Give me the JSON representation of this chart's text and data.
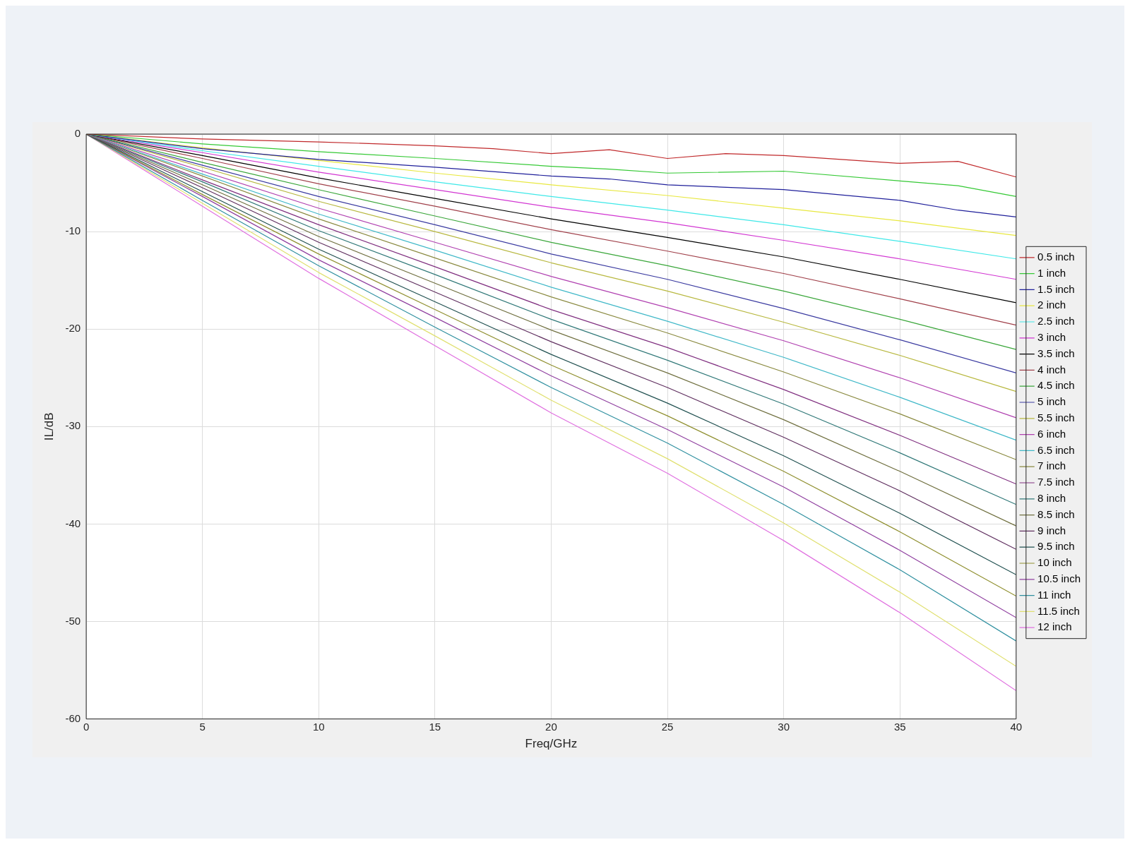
{
  "chart_data": {
    "type": "line",
    "xlabel": "Freq/GHz",
    "ylabel": "IL/dB",
    "xlim": [
      0,
      40
    ],
    "ylim": [
      -60,
      0
    ],
    "xticks": [
      0,
      5,
      10,
      15,
      20,
      25,
      30,
      35,
      40
    ],
    "yticks": [
      -60,
      -50,
      -40,
      -30,
      -20,
      -10,
      0
    ],
    "grid": true,
    "legend": "right",
    "marker": "none",
    "line_style": "solid",
    "x": [
      0,
      5,
      10,
      15,
      20,
      25,
      30,
      35,
      40
    ],
    "series": [
      {
        "name": "0.5 inch",
        "color": "#c0292b",
        "x": [
          0,
          5,
          10,
          15,
          17.5,
          20,
          22.5,
          25,
          27.5,
          30,
          35,
          37.5,
          40
        ],
        "values": [
          0,
          -0.5,
          -0.8,
          -1.2,
          -1.5,
          -2.0,
          -1.6,
          -2.5,
          -2.0,
          -2.2,
          -3.0,
          -2.8,
          -4.4
        ]
      },
      {
        "name": "1 inch",
        "color": "#35c935",
        "x": [
          0,
          5,
          10,
          15,
          20,
          22.5,
          25,
          30,
          35,
          37.5,
          40
        ],
        "values": [
          0,
          -1.0,
          -1.8,
          -2.5,
          -3.3,
          -3.6,
          -4.0,
          -3.8,
          -4.8,
          -5.3,
          -6.4
        ]
      },
      {
        "name": "1.5 inch",
        "color": "#1f1f9a",
        "x": [
          0,
          5,
          10,
          15,
          20,
          22.5,
          25,
          30,
          35,
          37.5,
          40
        ],
        "values": [
          0,
          -1.5,
          -2.6,
          -3.4,
          -4.3,
          -4.6,
          -5.2,
          -5.7,
          -6.8,
          -7.8,
          -8.5
        ]
      },
      {
        "name": "2 inch",
        "color": "#e8e840",
        "values": [
          0,
          -1.4,
          -2.7,
          -4.0,
          -5.2,
          -6.3,
          -7.6,
          -8.9,
          -10.4
        ]
      },
      {
        "name": "2.5 inch",
        "color": "#3ee8e8",
        "values": [
          0,
          -1.7,
          -3.3,
          -4.9,
          -6.4,
          -7.8,
          -9.3,
          -11.0,
          -12.8
        ]
      },
      {
        "name": "3 inch",
        "color": "#d235d2",
        "values": [
          0,
          -1.9,
          -3.9,
          -5.7,
          -7.5,
          -9.1,
          -10.9,
          -12.8,
          -14.9
        ]
      },
      {
        "name": "3.5 inch",
        "color": "#000000",
        "values": [
          0,
          -2.2,
          -4.5,
          -6.6,
          -8.7,
          -10.6,
          -12.6,
          -14.9,
          -17.3
        ]
      },
      {
        "name": "4 inch",
        "color": "#a0404a",
        "values": [
          0,
          -2.5,
          -5.1,
          -7.4,
          -9.8,
          -12.0,
          -14.3,
          -16.9,
          -19.6
        ]
      },
      {
        "name": "4.5 inch",
        "color": "#3aa63a",
        "values": [
          0,
          -2.9,
          -5.7,
          -8.4,
          -11.1,
          -13.5,
          -16.1,
          -19.0,
          -22.1
        ]
      },
      {
        "name": "5 inch",
        "color": "#3a3aa0",
        "values": [
          0,
          -3.2,
          -6.4,
          -9.3,
          -12.3,
          -14.9,
          -17.9,
          -21.1,
          -24.5
        ]
      },
      {
        "name": "5.5 inch",
        "color": "#b8b840",
        "values": [
          0,
          -3.4,
          -6.9,
          -10.0,
          -13.2,
          -16.1,
          -19.3,
          -22.7,
          -26.4
        ]
      },
      {
        "name": "6 inch",
        "color": "#b040b0",
        "values": [
          0,
          -3.8,
          -7.6,
          -11.1,
          -14.6,
          -17.8,
          -21.2,
          -25.0,
          -29.1
        ]
      },
      {
        "name": "6.5 inch",
        "color": "#40b8c8",
        "values": [
          0,
          -4.1,
          -8.2,
          -11.9,
          -15.7,
          -19.2,
          -22.9,
          -27.0,
          -31.4
        ]
      },
      {
        "name": "7 inch",
        "color": "#8a8a40",
        "values": [
          0,
          -4.3,
          -8.7,
          -12.7,
          -16.7,
          -20.4,
          -24.4,
          -28.7,
          -33.4
        ]
      },
      {
        "name": "7.5 inch",
        "color": "#803080",
        "values": [
          0,
          -4.7,
          -9.3,
          -13.6,
          -18.0,
          -21.9,
          -26.2,
          -30.9,
          -35.9
        ]
      },
      {
        "name": "8 inch",
        "color": "#307878",
        "values": [
          0,
          -4.9,
          -9.9,
          -14.4,
          -19.0,
          -23.2,
          -27.7,
          -32.7,
          -38.0
        ]
      },
      {
        "name": "8.5 inch",
        "color": "#707040",
        "values": [
          0,
          -5.2,
          -10.5,
          -15.3,
          -20.1,
          -24.5,
          -29.3,
          -34.6,
          -40.2
        ]
      },
      {
        "name": "9 inch",
        "color": "#603060",
        "values": [
          0,
          -5.5,
          -11.1,
          -16.2,
          -21.3,
          -26.0,
          -31.1,
          -36.6,
          -42.6
        ]
      },
      {
        "name": "9.5 inch",
        "color": "#205050",
        "values": [
          0,
          -5.9,
          -11.8,
          -17.2,
          -22.6,
          -27.6,
          -33.0,
          -38.9,
          -45.2
        ]
      },
      {
        "name": "10 inch",
        "color": "#909030",
        "values": [
          0,
          -6.2,
          -12.3,
          -18.0,
          -23.7,
          -28.9,
          -34.6,
          -40.8,
          -47.4
        ]
      },
      {
        "name": "10.5 inch",
        "color": "#9040a0",
        "values": [
          0,
          -6.4,
          -12.9,
          -18.8,
          -24.8,
          -30.3,
          -36.2,
          -42.7,
          -49.6
        ]
      },
      {
        "name": "11 inch",
        "color": "#3090a0",
        "values": [
          0,
          -6.8,
          -13.5,
          -19.8,
          -26.0,
          -31.7,
          -38.0,
          -44.7,
          -52.0
        ]
      },
      {
        "name": "11.5 inch",
        "color": "#e0e070",
        "values": [
          0,
          -7.1,
          -14.2,
          -20.7,
          -27.3,
          -33.3,
          -39.9,
          -47.0,
          -54.6
        ]
      },
      {
        "name": "12 inch",
        "color": "#e070e0",
        "values": [
          0,
          -7.4,
          -14.8,
          -21.7,
          -28.6,
          -34.8,
          -41.7,
          -49.1,
          -57.1
        ]
      }
    ]
  }
}
